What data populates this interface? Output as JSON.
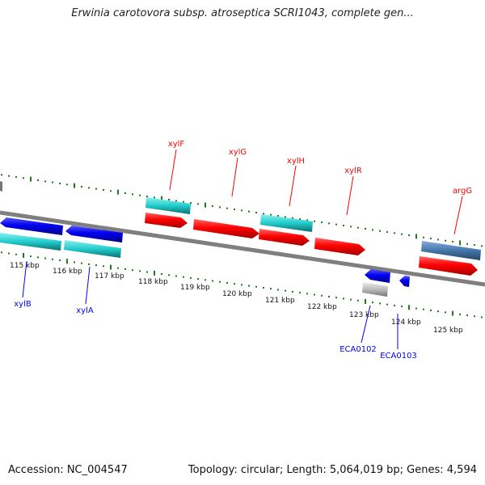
{
  "title": "Erwinia carotovora subsp. atroseptica SCRI1043, complete gen...",
  "footer": {
    "accession": "Accession: NC_004547",
    "topology": "Topology: circular; Length: 5,064,019 bp; Genes: 4,594"
  },
  "colors": {
    "backbone": "#7f7f7f",
    "tick": "#1f7a1f",
    "forward_gene": "#ff0000",
    "reverse_gene": "#0000ff",
    "forward_feature": "#22cccc",
    "other_feature": "#4477aa",
    "pseudo_feature": "#bbbbbb"
  },
  "scale": {
    "ticks": [
      "115 kbp",
      "116 kbp",
      "117 kbp",
      "118 kbp",
      "119 kbp",
      "120 kbp",
      "121 kbp",
      "122 kbp",
      "123 kbp",
      "124 kbp",
      "125 kbp"
    ]
  },
  "genes": {
    "xylF": "xylF",
    "xylG": "xylG",
    "xylH": "xylH",
    "xylR": "xylR",
    "argG": "argG",
    "xylB": "xylB",
    "xylA": "xylA",
    "ECA0102": "ECA0102",
    "ECA0103": "ECA0103"
  }
}
